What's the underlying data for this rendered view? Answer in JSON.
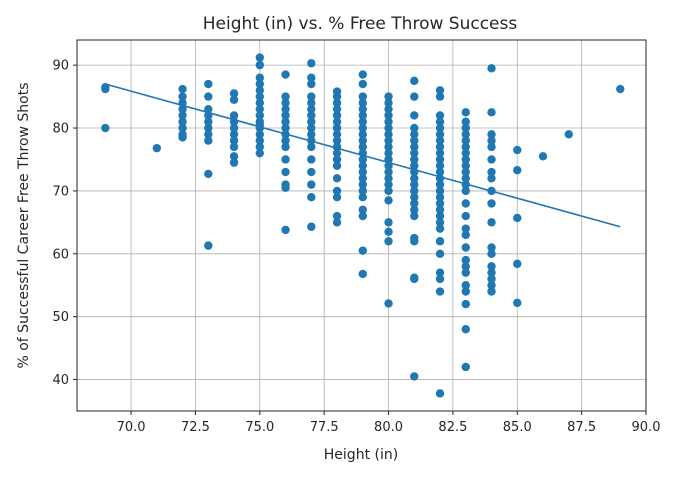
{
  "chart_data": {
    "type": "scatter",
    "title": "Height (in) vs. % Free Throw Success",
    "xlabel": "Height (in)",
    "ylabel": "% of Successful Career Free Throw Shots",
    "xlim": [
      67.9,
      90.0
    ],
    "ylim": [
      35.0,
      94.0
    ],
    "xticks": [
      "70.0",
      "72.5",
      "75.0",
      "77.5",
      "80.0",
      "82.5",
      "85.0",
      "87.5",
      "90.0"
    ],
    "yticks": [
      "40",
      "50",
      "60",
      "70",
      "80",
      "90"
    ],
    "grid": true,
    "marker_color": "#1f77b4",
    "line_color": "#1f77b4",
    "trend_line": [
      [
        69,
        87.0
      ],
      [
        89,
        64.3
      ]
    ],
    "points": [
      [
        69,
        86.5
      ],
      [
        69,
        86.2
      ],
      [
        69,
        80.0
      ],
      [
        71,
        76.8
      ],
      [
        72,
        86.2
      ],
      [
        72,
        85.0
      ],
      [
        72,
        84.0
      ],
      [
        72,
        83.0
      ],
      [
        72,
        82.0
      ],
      [
        72,
        81.0
      ],
      [
        72,
        80.0
      ],
      [
        72,
        79.0
      ],
      [
        72,
        78.5
      ],
      [
        73,
        87.0
      ],
      [
        73,
        85.0
      ],
      [
        73,
        83.0
      ],
      [
        73,
        82.0
      ],
      [
        73,
        81.0
      ],
      [
        73,
        80.0
      ],
      [
        73,
        79.0
      ],
      [
        73,
        78.0
      ],
      [
        73,
        72.7
      ],
      [
        73,
        61.3
      ],
      [
        74,
        85.5
      ],
      [
        74,
        84.5
      ],
      [
        74,
        82.0
      ],
      [
        74,
        81.0
      ],
      [
        74,
        80.0
      ],
      [
        74,
        79.0
      ],
      [
        74,
        78.0
      ],
      [
        74,
        77.0
      ],
      [
        74,
        75.5
      ],
      [
        74,
        74.5
      ],
      [
        75,
        91.2
      ],
      [
        75,
        90.0
      ],
      [
        75,
        88.0
      ],
      [
        75,
        87.0
      ],
      [
        75,
        86.0
      ],
      [
        75,
        85.0
      ],
      [
        75,
        84.0
      ],
      [
        75,
        83.0
      ],
      [
        75,
        82.0
      ],
      [
        75,
        81.0
      ],
      [
        75,
        80.5
      ],
      [
        75,
        80.0
      ],
      [
        75,
        79.0
      ],
      [
        75,
        78.0
      ],
      [
        75,
        77.0
      ],
      [
        75,
        76.0
      ],
      [
        76,
        88.5
      ],
      [
        76,
        85.0
      ],
      [
        76,
        84.0
      ],
      [
        76,
        83.0
      ],
      [
        76,
        82.0
      ],
      [
        76,
        81.0
      ],
      [
        76,
        80.0
      ],
      [
        76,
        79.0
      ],
      [
        76,
        78.0
      ],
      [
        76,
        77.0
      ],
      [
        76,
        75.0
      ],
      [
        76,
        73.0
      ],
      [
        76,
        71.0
      ],
      [
        76,
        70.5
      ],
      [
        76,
        63.8
      ],
      [
        77,
        90.3
      ],
      [
        77,
        88.0
      ],
      [
        77,
        87.0
      ],
      [
        77,
        85.0
      ],
      [
        77,
        84.0
      ],
      [
        77,
        83.0
      ],
      [
        77,
        82.0
      ],
      [
        77,
        81.0
      ],
      [
        77,
        80.0
      ],
      [
        77,
        79.0
      ],
      [
        77,
        78.0
      ],
      [
        77,
        77.0
      ],
      [
        77,
        75.0
      ],
      [
        77,
        73.0
      ],
      [
        77,
        71.0
      ],
      [
        77,
        69.0
      ],
      [
        77,
        64.3
      ],
      [
        78,
        85.8
      ],
      [
        78,
        85.0
      ],
      [
        78,
        84.0
      ],
      [
        78,
        83.0
      ],
      [
        78,
        82.0
      ],
      [
        78,
        81.0
      ],
      [
        78,
        80.0
      ],
      [
        78,
        79.0
      ],
      [
        78,
        78.0
      ],
      [
        78,
        77.0
      ],
      [
        78,
        76.0
      ],
      [
        78,
        75.0
      ],
      [
        78,
        74.0
      ],
      [
        78,
        72.0
      ],
      [
        78,
        70.0
      ],
      [
        78,
        69.0
      ],
      [
        78,
        66.0
      ],
      [
        78,
        65.0
      ],
      [
        79,
        88.5
      ],
      [
        79,
        87.0
      ],
      [
        79,
        85.0
      ],
      [
        79,
        84.0
      ],
      [
        79,
        83.0
      ],
      [
        79,
        82.0
      ],
      [
        79,
        81.0
      ],
      [
        79,
        80.0
      ],
      [
        79,
        79.0
      ],
      [
        79,
        78.0
      ],
      [
        79,
        77.0
      ],
      [
        79,
        76.0
      ],
      [
        79,
        75.0
      ],
      [
        79,
        74.0
      ],
      [
        79,
        73.0
      ],
      [
        79,
        72.0
      ],
      [
        79,
        71.0
      ],
      [
        79,
        70.0
      ],
      [
        79,
        69.0
      ],
      [
        79,
        67.0
      ],
      [
        79,
        66.0
      ],
      [
        79,
        60.5
      ],
      [
        79,
        56.8
      ],
      [
        80,
        85.0
      ],
      [
        80,
        84.0
      ],
      [
        80,
        83.0
      ],
      [
        80,
        82.0
      ],
      [
        80,
        81.0
      ],
      [
        80,
        80.0
      ],
      [
        80,
        79.0
      ],
      [
        80,
        78.0
      ],
      [
        80,
        77.0
      ],
      [
        80,
        76.0
      ],
      [
        80,
        75.0
      ],
      [
        80,
        74.0
      ],
      [
        80,
        73.0
      ],
      [
        80,
        72.0
      ],
      [
        80,
        71.0
      ],
      [
        80,
        70.0
      ],
      [
        80,
        68.5
      ],
      [
        80,
        65.0
      ],
      [
        80,
        63.5
      ],
      [
        80,
        62.0
      ],
      [
        80,
        52.1
      ],
      [
        81,
        87.5
      ],
      [
        81,
        85.0
      ],
      [
        81,
        82.0
      ],
      [
        81,
        80.0
      ],
      [
        81,
        79.0
      ],
      [
        81,
        78.0
      ],
      [
        81,
        77.0
      ],
      [
        81,
        76.0
      ],
      [
        81,
        75.0
      ],
      [
        81,
        74.0
      ],
      [
        81,
        73.0
      ],
      [
        81,
        72.0
      ],
      [
        81,
        71.0
      ],
      [
        81,
        70.0
      ],
      [
        81,
        69.0
      ],
      [
        81,
        68.0
      ],
      [
        81,
        67.0
      ],
      [
        81,
        66.0
      ],
      [
        81,
        62.5
      ],
      [
        81,
        62.0
      ],
      [
        81,
        56.2
      ],
      [
        81,
        56.0
      ],
      [
        81,
        40.5
      ],
      [
        82,
        86.0
      ],
      [
        82,
        85.0
      ],
      [
        82,
        82.0
      ],
      [
        82,
        81.0
      ],
      [
        82,
        80.0
      ],
      [
        82,
        79.0
      ],
      [
        82,
        78.0
      ],
      [
        82,
        77.0
      ],
      [
        82,
        76.0
      ],
      [
        82,
        75.0
      ],
      [
        82,
        74.0
      ],
      [
        82,
        73.0
      ],
      [
        82,
        72.0
      ],
      [
        82,
        71.0
      ],
      [
        82,
        70.0
      ],
      [
        82,
        69.0
      ],
      [
        82,
        68.0
      ],
      [
        82,
        67.0
      ],
      [
        82,
        66.0
      ],
      [
        82,
        65.0
      ],
      [
        82,
        64.0
      ],
      [
        82,
        62.0
      ],
      [
        82,
        60.0
      ],
      [
        82,
        57.0
      ],
      [
        82,
        56.0
      ],
      [
        82,
        54.0
      ],
      [
        82,
        37.8
      ],
      [
        83,
        82.5
      ],
      [
        83,
        81.0
      ],
      [
        83,
        80.0
      ],
      [
        83,
        79.0
      ],
      [
        83,
        78.0
      ],
      [
        83,
        77.0
      ],
      [
        83,
        76.0
      ],
      [
        83,
        75.0
      ],
      [
        83,
        74.0
      ],
      [
        83,
        73.0
      ],
      [
        83,
        72.0
      ],
      [
        83,
        71.0
      ],
      [
        83,
        70.0
      ],
      [
        83,
        68.0
      ],
      [
        83,
        66.0
      ],
      [
        83,
        64.0
      ],
      [
        83,
        63.0
      ],
      [
        83,
        61.0
      ],
      [
        83,
        59.0
      ],
      [
        83,
        58.0
      ],
      [
        83,
        57.0
      ],
      [
        83,
        55.0
      ],
      [
        83,
        54.0
      ],
      [
        83,
        52.0
      ],
      [
        83,
        48.0
      ],
      [
        83,
        42.0
      ],
      [
        84,
        89.5
      ],
      [
        84,
        82.5
      ],
      [
        84,
        79.0
      ],
      [
        84,
        78.0
      ],
      [
        84,
        77.0
      ],
      [
        84,
        75.0
      ],
      [
        84,
        73.0
      ],
      [
        84,
        72.0
      ],
      [
        84,
        70.0
      ],
      [
        84,
        68.0
      ],
      [
        84,
        65.0
      ],
      [
        84,
        61.0
      ],
      [
        84,
        60.0
      ],
      [
        84,
        58.0
      ],
      [
        84,
        57.0
      ],
      [
        84,
        56.0
      ],
      [
        84,
        55.0
      ],
      [
        84,
        54.0
      ],
      [
        85,
        76.5
      ],
      [
        85,
        73.3
      ],
      [
        85,
        65.7
      ],
      [
        85,
        58.4
      ],
      [
        85,
        52.2
      ],
      [
        86,
        75.5
      ],
      [
        87,
        79.0
      ],
      [
        89,
        86.2
      ]
    ]
  }
}
